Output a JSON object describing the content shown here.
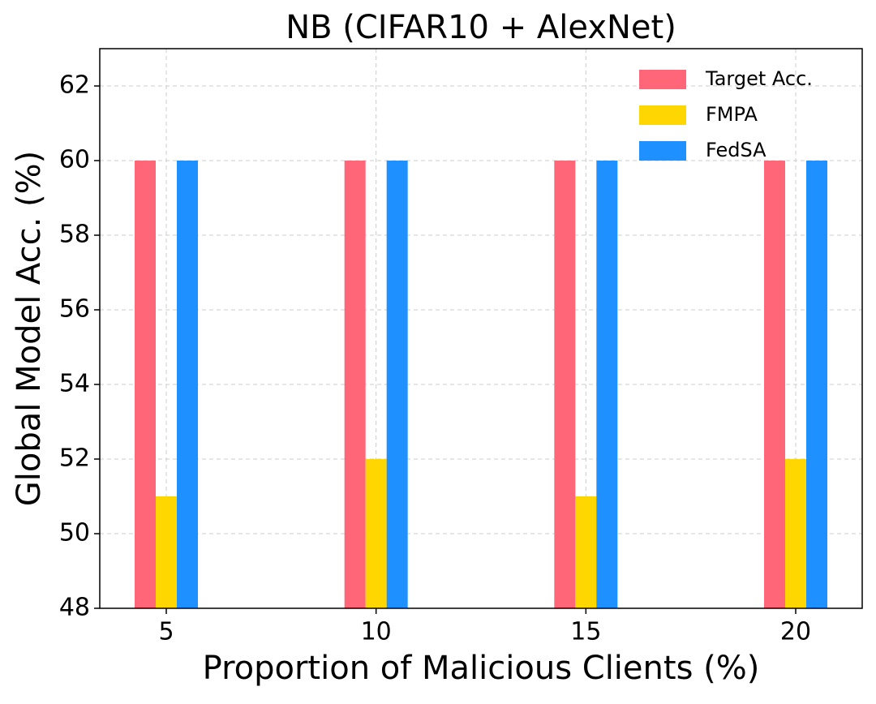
{
  "chart_data": {
    "type": "bar",
    "title": "NB (CIFAR10 + AlexNet)",
    "xlabel": "Proportion of Malicious Clients (%)",
    "ylabel": "Global Model Acc. (%)",
    "categories": [
      "5",
      "10",
      "15",
      "20"
    ],
    "series": [
      {
        "name": "Target Acc.",
        "color": "#ff6677",
        "values": [
          60,
          60,
          60,
          60
        ]
      },
      {
        "name": "FMPA",
        "color": "#ffd700",
        "values": [
          51,
          52,
          51,
          52
        ]
      },
      {
        "name": "FedSA",
        "color": "#1e90ff",
        "values": [
          60,
          60,
          60,
          60
        ]
      }
    ],
    "ylim": [
      48,
      63
    ],
    "yticks": [
      48,
      50,
      52,
      54,
      56,
      58,
      60,
      62
    ],
    "grid": true,
    "legend": "upper right"
  }
}
